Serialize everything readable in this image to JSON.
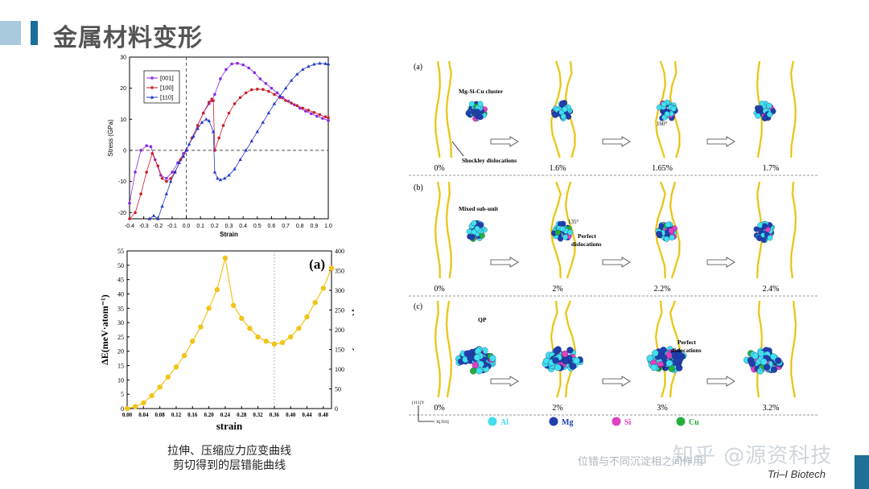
{
  "header": {
    "title": "金属材料变形",
    "accent_colors": [
      "#a9c9dc",
      "#1a6e9a"
    ]
  },
  "captions": {
    "line1": "拉伸、压缩应力应变曲线",
    "line2": "剪切得到的层错能曲线"
  },
  "footer": {
    "watermark": "知乎 @源资科技",
    "overlay_text": "位错与不同沉淀相之间作用",
    "brand": "Tri–I Biotech"
  },
  "chart_data": [
    {
      "type": "line",
      "title": "",
      "xlabel": "Strain",
      "ylabel": "Stress (GPa)",
      "xlim": [
        -0.4,
        1.0
      ],
      "ylim": [
        -22,
        30
      ],
      "xticks": [
        "-0.4",
        "-0.3",
        "-0.2",
        "-0.1",
        "0.0",
        "0.1",
        "0.2",
        "0.3",
        "0.4",
        "0.5",
        "0.6",
        "0.7",
        "0.8",
        "0.9",
        "1.0"
      ],
      "yticks": [
        "-20",
        "-10",
        "0",
        "10",
        "20",
        "30"
      ],
      "legend_position": "top-left",
      "series": [
        {
          "name": "[001]",
          "color": "#8a2be2",
          "marker": "circle",
          "x": [
            -0.4,
            -0.36,
            -0.32,
            -0.28,
            -0.25,
            -0.22,
            -0.18,
            -0.14,
            -0.1,
            -0.06,
            -0.02,
            0.0,
            0.04,
            0.08,
            0.12,
            0.16,
            0.18,
            0.2,
            0.24,
            0.28,
            0.32,
            0.36,
            0.4,
            0.44,
            0.48,
            0.52,
            0.56,
            0.6,
            0.64,
            0.68,
            0.72,
            0.76,
            0.8,
            0.84,
            0.88,
            0.92,
            0.96,
            1.0
          ],
          "y": [
            -17,
            -7,
            0,
            1.5,
            1.2,
            -3,
            -8,
            -9,
            -7,
            -4,
            -1,
            0,
            4,
            8,
            12,
            15,
            16,
            18,
            23,
            26,
            27.8,
            28,
            27.5,
            26.5,
            25,
            23,
            21.5,
            20,
            18.5,
            17,
            15.8,
            14.7,
            13.6,
            12.6,
            11.8,
            11,
            10.3,
            9.6
          ]
        },
        {
          "name": "[100]",
          "color": "#cc1f2a",
          "marker": "circle",
          "x": [
            -0.4,
            -0.36,
            -0.32,
            -0.28,
            -0.24,
            -0.2,
            -0.17,
            -0.14,
            -0.11,
            -0.08,
            -0.04,
            0.0,
            0.04,
            0.08,
            0.12,
            0.16,
            0.18,
            0.19,
            0.2,
            0.23,
            0.26,
            0.3,
            0.34,
            0.38,
            0.42,
            0.46,
            0.5,
            0.54,
            0.58,
            0.62,
            0.66,
            0.7,
            0.74,
            0.78,
            0.82,
            0.86,
            0.9,
            0.94,
            0.98,
            1.0
          ],
          "y": [
            -22,
            -20,
            -14,
            -7,
            -1,
            -5,
            -9,
            -10,
            -9,
            -7,
            -3,
            0,
            4,
            8,
            12,
            15.5,
            16.5,
            16,
            0,
            4,
            8,
            12,
            15,
            17,
            18.5,
            19.5,
            19.7,
            19.6,
            19,
            18,
            17,
            16,
            15.2,
            14.4,
            13.6,
            12.9,
            12.2,
            11.5,
            10.8,
            10.5
          ]
        },
        {
          "name": "[110]",
          "color": "#2338c8",
          "marker": "triangle",
          "x": [
            -0.26,
            -0.23,
            -0.2,
            -0.17,
            -0.14,
            -0.11,
            -0.08,
            -0.05,
            -0.02,
            0.0,
            0.02,
            0.05,
            0.08,
            0.11,
            0.14,
            0.16,
            0.19,
            0.2,
            0.22,
            0.24,
            0.27,
            0.3,
            0.34,
            0.38,
            0.42,
            0.46,
            0.5,
            0.54,
            0.58,
            0.62,
            0.66,
            0.7,
            0.74,
            0.78,
            0.82,
            0.86,
            0.9,
            0.94,
            0.98,
            1.0
          ],
          "y": [
            -22,
            -21,
            -22,
            -18,
            -14,
            -10,
            -7,
            -4,
            -2,
            0,
            2,
            4.5,
            7,
            9,
            10,
            9.5,
            6,
            -7,
            -9,
            -9.5,
            -9,
            -8,
            -6,
            -3,
            0,
            3,
            6,
            9,
            12,
            15,
            17.5,
            20,
            22.5,
            24.5,
            26,
            27,
            27.7,
            28,
            27.9,
            27.8
          ]
        }
      ]
    },
    {
      "type": "line",
      "title": "",
      "panel_label": "(a)",
      "xlabel": "strain",
      "ylabel_left": "ΔE(meV·atom⁻¹)",
      "ylabel_right": "γ(mJ·m⁻²)",
      "xlim": [
        0,
        0.5
      ],
      "ylim_left": [
        0,
        55
      ],
      "ylim_right": [
        0,
        400
      ],
      "xticks": [
        "0.00",
        "0.04",
        "0.08",
        "0.12",
        "0.16",
        "0.20",
        "0.24",
        "0.28",
        "0.32",
        "0.36",
        "0.40",
        "0.44",
        "0.48"
      ],
      "yticks_left": [
        "0",
        "5",
        "10",
        "15",
        "20",
        "25",
        "30",
        "35",
        "40",
        "45",
        "50",
        "55"
      ],
      "yticks_right": [
        "0",
        "50",
        "100",
        "150",
        "200",
        "250",
        "300",
        "350",
        "400"
      ],
      "reference_line_x": 0.36,
      "series": [
        {
          "color": "#f0c419",
          "marker": "circle",
          "x": [
            0.0,
            0.02,
            0.04,
            0.06,
            0.08,
            0.1,
            0.12,
            0.14,
            0.16,
            0.18,
            0.2,
            0.22,
            0.24,
            0.26,
            0.28,
            0.3,
            0.32,
            0.34,
            0.36,
            0.38,
            0.4,
            0.42,
            0.44,
            0.46,
            0.48,
            0.5
          ],
          "y": [
            0,
            0.7,
            2,
            4.5,
            7.5,
            11,
            14.5,
            18.5,
            23.5,
            28.5,
            35,
            41.5,
            52.5,
            36,
            31.5,
            28,
            25,
            23.5,
            22.5,
            23,
            25,
            28,
            32,
            37,
            42,
            49
          ]
        }
      ]
    },
    {
      "type": "diagram",
      "rows": [
        {
          "label": "(a)",
          "annotations": [
            "Mg-Si-Cu cluster",
            "Shockley dislocations",
            "160°"
          ],
          "strains": [
            "0%",
            "1.6%",
            "1.65%",
            "1.7%"
          ]
        },
        {
          "label": "(b)",
          "annotations": [
            "Mixed sub-unit",
            "135°",
            "Perfect dislocations"
          ],
          "strains": [
            "0%",
            "2%",
            "2.2%",
            "2.4%"
          ]
        },
        {
          "label": "(c)",
          "annotations": [
            "QP",
            "Perfect dislocations",
            "95°"
          ],
          "strains": [
            "0%",
            "2%",
            "3%",
            "3.2%"
          ]
        }
      ],
      "axis_labels": [
        "[111]Y",
        "X[1̄10]"
      ],
      "legend": [
        {
          "name": "Al",
          "color": "#40e0f0"
        },
        {
          "name": "Mg",
          "color": "#1f3fae"
        },
        {
          "name": "Si",
          "color": "#e040c0"
        },
        {
          "name": "Cu",
          "color": "#22b03a"
        }
      ]
    }
  ]
}
